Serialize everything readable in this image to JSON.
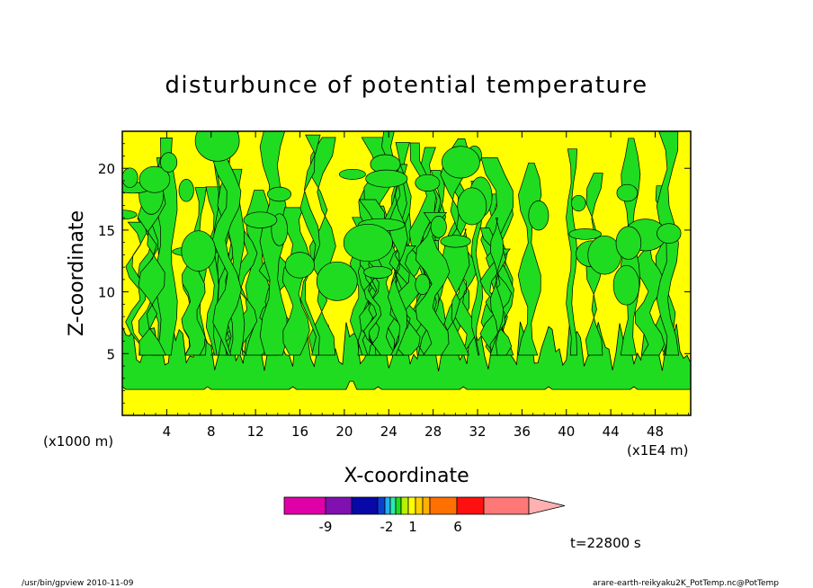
{
  "chart_data": {
    "type": "heatmap",
    "title": "disturbunce of potential temperature",
    "xlabel": "X-coordinate",
    "ylabel": "Z-coordinate",
    "x_scale_note": "(x1E4 m)",
    "y_scale_note": "(x1000 m)",
    "xlim": [
      0,
      51.2
    ],
    "ylim": [
      0,
      23
    ],
    "x_ticks": [
      4,
      8,
      12,
      16,
      20,
      24,
      28,
      32,
      36,
      40,
      44,
      48
    ],
    "y_ticks": [
      5,
      10,
      15,
      20
    ],
    "time_label": "t=22800 s",
    "colorbar": {
      "labels": [
        {
          "value": -9,
          "text": "-9"
        },
        {
          "value": -2,
          "text": "-2"
        },
        {
          "value": 1,
          "text": "1"
        },
        {
          "value": 6,
          "text": "6"
        }
      ],
      "colors": [
        "#e000a8",
        "#8010b0",
        "#0808a8",
        "#0a40d0",
        "#20b0f0",
        "#2ee8b0",
        "#20dc20",
        "#b8f000",
        "#ffff00",
        "#ffd000",
        "#ffb000",
        "#ff7000",
        "#ff1010",
        "#ff7878",
        "#ffb0b0"
      ]
    },
    "field_description": "Bands by height: 0-2 km yellow (positive), 2-5 km green (near zero), above 5 km alternating green/yellow vertical plumes",
    "field_colors": {
      "positive": "#ffff00",
      "near_zero": "#20dc20",
      "line": "#000000"
    }
  },
  "footer": {
    "left": "/usr/bin/gpview   2010-11-09",
    "right": "arare-earth-reikyaku2K_PotTemp.nc@PotTemp"
  }
}
